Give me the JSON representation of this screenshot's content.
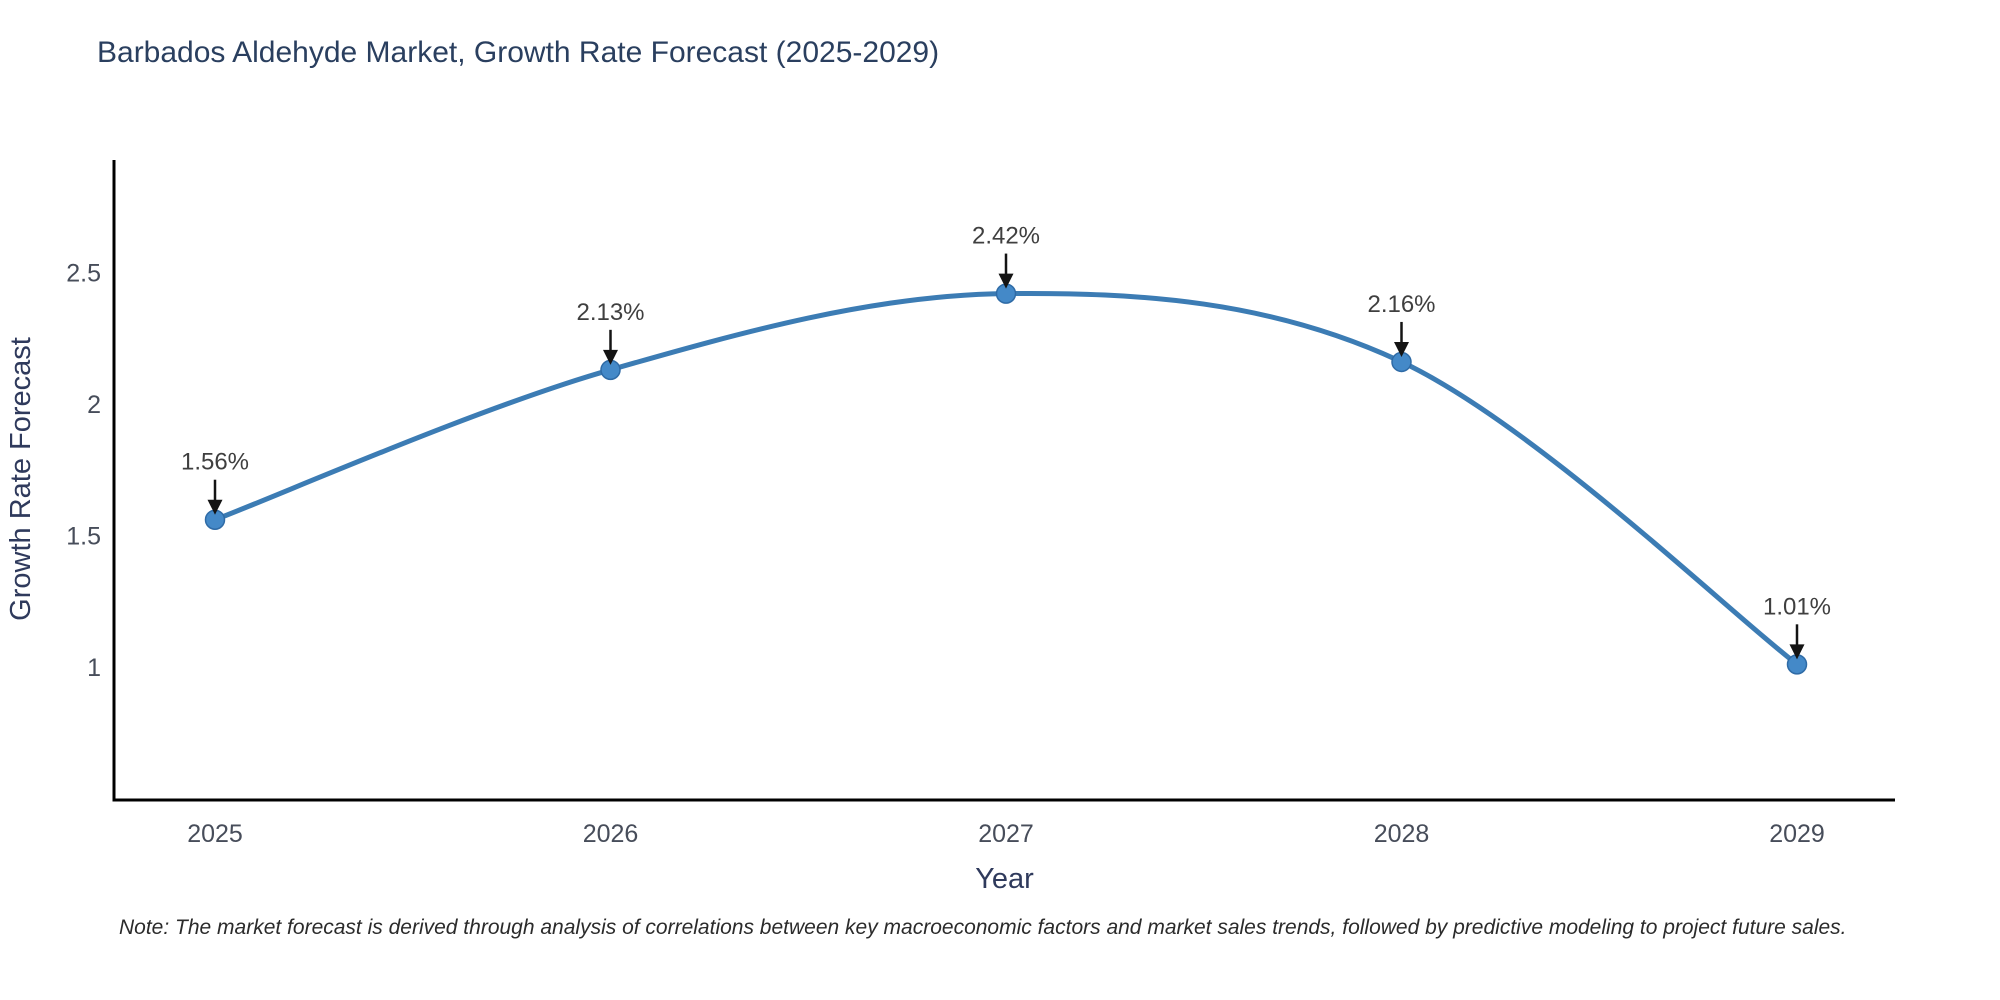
{
  "title": "Barbados Aldehyde Market, Growth Rate Forecast (2025-2029)",
  "note": "Note: The market forecast is derived through analysis of correlations between key macroeconomic factors and market sales trends, followed by predictive modeling to project future sales.",
  "chart_data": {
    "type": "line",
    "title": "Barbados Aldehyde Market, Growth Rate Forecast (2025-2029)",
    "x": [
      "2025",
      "2026",
      "2027",
      "2028",
      "2029"
    ],
    "values": [
      1.56,
      2.13,
      2.42,
      2.16,
      1.01
    ],
    "point_labels": [
      "1.56%",
      "2.13%",
      "2.42%",
      "2.16%",
      "1.01%"
    ],
    "xlabel": "Year",
    "ylabel": "Growth Rate Forecast",
    "yticks": [
      1,
      1.5,
      2,
      2.5
    ],
    "ylim": [
      0.494,
      2.928
    ],
    "grid": false,
    "legend": "none",
    "smooth": true,
    "colors": {
      "line": "#3c7cb4",
      "marker": "#4489c8",
      "marker_edge": "#2f6ba6",
      "arrow": "#141414",
      "point_label": "#3f3f3f",
      "tick_label": "#474d5a",
      "axis_label": "#2f3a5c",
      "title": "#2a3f5f",
      "spine": "#000000"
    }
  }
}
